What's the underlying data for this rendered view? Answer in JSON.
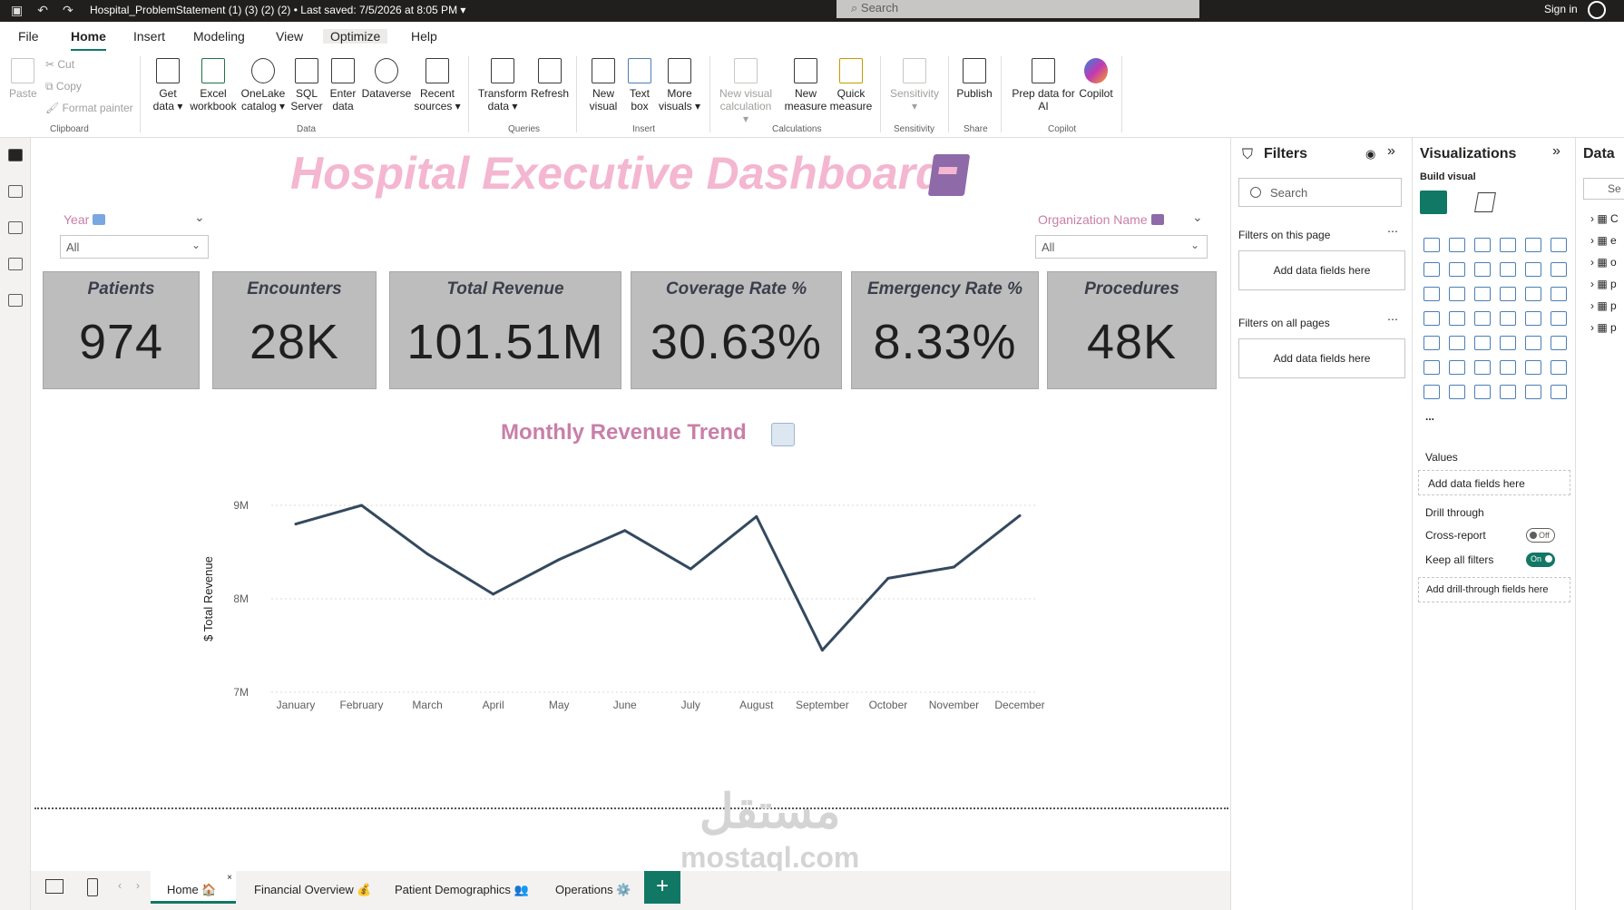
{
  "titlebar": {
    "title": "Hospital_ProblemStatement (1) (3) (2) (2) • Last saved: 7/5/2026 at 8:05 PM ▾",
    "search_placeholder": "Search",
    "signin": "Sign in"
  },
  "ribbon_tabs": [
    "File",
    "Home",
    "Insert",
    "Modeling",
    "View",
    "Optimize",
    "Help"
  ],
  "ribbon": {
    "clipboard": {
      "paste": "Paste",
      "cut": "Cut",
      "copy": "Copy",
      "format_painter": "Format painter",
      "group": "Clipboard"
    },
    "data": {
      "get_data": "Get data ▾",
      "excel": "Excel workbook",
      "onelake": "OneLake catalog ▾",
      "sql": "SQL Server",
      "enter": "Enter data",
      "dataverse": "Dataverse",
      "recent": "Recent sources ▾",
      "group": "Data"
    },
    "queries": {
      "transform": "Transform data ▾",
      "refresh": "Refresh",
      "group": "Queries"
    },
    "insert": {
      "new_visual": "New visual",
      "text_box": "Text box",
      "more_visuals": "More visuals ▾",
      "group": "Insert"
    },
    "calculations": {
      "new_visual_calc": "New visual calculation ▾",
      "new_measure": "New measure",
      "quick_measure": "Quick measure",
      "group": "Calculations"
    },
    "sensitivity": {
      "label": "Sensitivity ▾",
      "group": "Sensitivity"
    },
    "share": {
      "publish": "Publish",
      "group": "Share"
    },
    "copilot": {
      "prep": "Prep data for AI",
      "copilot": "Copilot",
      "group": "Copilot"
    }
  },
  "dashboard": {
    "title": "Hospital Executive Dashboard",
    "slicers": [
      {
        "label": "Year",
        "value": "All"
      },
      {
        "label": "Organization Name",
        "value": "All"
      }
    ],
    "kpis": [
      {
        "label": "Patients",
        "value": "974"
      },
      {
        "label": "Encounters",
        "value": "28K"
      },
      {
        "label": "Total Revenue",
        "value": "101.51M"
      },
      {
        "label": "Coverage Rate %",
        "value": "30.63%"
      },
      {
        "label": "Emergency Rate %",
        "value": "8.33%"
      },
      {
        "label": "Procedures",
        "value": "48K"
      }
    ],
    "chart_title": "Monthly Revenue Trend"
  },
  "chart_data": {
    "type": "line",
    "title": "Monthly Revenue Trend",
    "xlabel": "",
    "ylabel": "$ Total Revenue",
    "categories": [
      "January",
      "February",
      "March",
      "April",
      "May",
      "June",
      "July",
      "August",
      "September",
      "October",
      "November",
      "December"
    ],
    "values": [
      8.8,
      9.0,
      8.48,
      8.05,
      8.42,
      8.73,
      8.32,
      8.88,
      7.45,
      8.22,
      8.34,
      8.89
    ],
    "ylim": [
      7,
      9
    ],
    "yticks": [
      "7M",
      "8M",
      "9M"
    ],
    "line_color": "#34495e",
    "grid": true
  },
  "watermark": {
    "arabic": "مستقل",
    "latin": "mostaql.com"
  },
  "page_tabs": [
    "Home 🏠",
    "Financial Overview 💰",
    "Patient Demographics 👥",
    "Operations ⚙️"
  ],
  "filters": {
    "title": "Filters",
    "search": "Search",
    "on_this_page": "Filters on this page",
    "on_all_pages": "Filters on all pages",
    "add_fields": "Add data fields here"
  },
  "visualizations": {
    "title": "Visualizations",
    "build_visual": "Build visual",
    "values": "Values",
    "add_fields": "Add data fields here",
    "drill_through": "Drill through",
    "cross_report": "Cross-report",
    "cross_report_state": "Off",
    "keep_filters": "Keep all filters",
    "keep_filters_state": "On",
    "add_drill": "Add drill-through fields here",
    "more": "..."
  },
  "data_pane": {
    "title": "Data",
    "search": "Se",
    "items": [
      "C",
      "e",
      "o",
      "p",
      "p",
      "p"
    ]
  },
  "colors": {
    "accent": "#117865",
    "title_pink": "#f4b6d0",
    "label_pink": "#c97fa8",
    "kpi_bg": "#bdbdbd"
  }
}
